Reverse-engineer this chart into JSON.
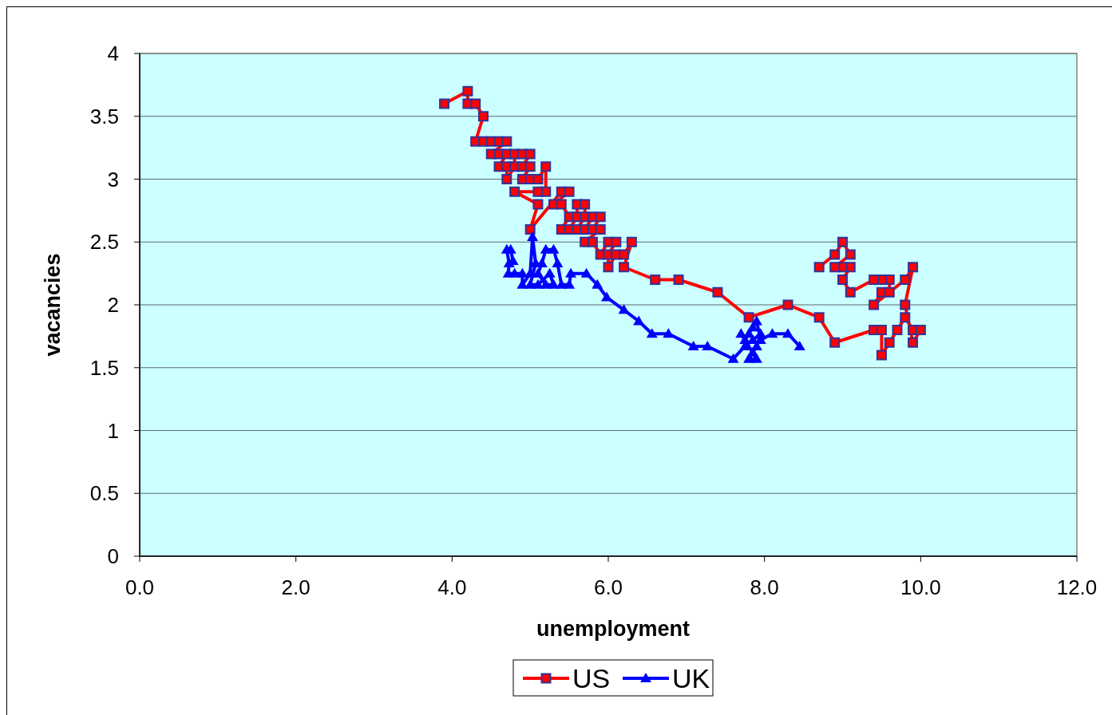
{
  "chart_data": {
    "type": "line",
    "xlabel": "unemployment",
    "ylabel": "vacancies",
    "xlim": [
      0,
      12
    ],
    "xticks": [
      {
        "value": 0,
        "label": "0.0"
      },
      {
        "value": 2,
        "label": "2.0"
      },
      {
        "value": 4,
        "label": "4.0"
      },
      {
        "value": 6,
        "label": "6.0"
      },
      {
        "value": 8,
        "label": "8.0"
      },
      {
        "value": 10,
        "label": "10.0"
      },
      {
        "value": 12,
        "label": "12.0"
      }
    ],
    "ylim": [
      0,
      4
    ],
    "yticks": [
      0,
      0.5,
      1,
      1.5,
      2,
      2.5,
      3,
      3.5,
      4
    ],
    "grid": "y",
    "legend": "bottom",
    "series": [
      {
        "name": "US",
        "color": "#ff0000",
        "marker": "square",
        "x": [
          3.9,
          4.2,
          4.2,
          4.3,
          4.4,
          4.3,
          4.4,
          4.5,
          4.6,
          4.7,
          4.5,
          4.6,
          4.7,
          4.6,
          4.7,
          4.7,
          4.8,
          4.8,
          4.9,
          5.0,
          4.9,
          5.0,
          4.9,
          5.0,
          5.1,
          5.2,
          5.2,
          5.1,
          4.8,
          5.1,
          5.0,
          5.4,
          5.5,
          5.3,
          5.4,
          5.5,
          5.4,
          5.5,
          5.6,
          5.6,
          5.7,
          5.7,
          5.6,
          5.7,
          5.8,
          5.9,
          5.8,
          5.9,
          5.7,
          5.8,
          5.9,
          6.0,
          6.1,
          6.0,
          6.0,
          6.1,
          6.2,
          6.3,
          6.2,
          6.6,
          6.9,
          7.4,
          7.8,
          8.3,
          8.7,
          8.9,
          9.4,
          9.5,
          9.5,
          9.6,
          9.7,
          9.8,
          9.9,
          10.0,
          9.9,
          9.8,
          9.9,
          9.8,
          9.4,
          9.5,
          9.6,
          9.6,
          9.5,
          9.4,
          9.1,
          9.0,
          9.1,
          9.0,
          8.9,
          9.1,
          9.0,
          8.9,
          8.7
        ],
        "values": [
          3.6,
          3.7,
          3.6,
          3.6,
          3.5,
          3.3,
          3.3,
          3.3,
          3.3,
          3.3,
          3.2,
          3.2,
          3.2,
          3.1,
          3.1,
          3.0,
          3.1,
          3.2,
          3.2,
          3.2,
          3.1,
          3.1,
          3.0,
          3.0,
          3.0,
          3.1,
          2.9,
          2.9,
          2.9,
          2.8,
          2.6,
          2.9,
          2.9,
          2.8,
          2.8,
          2.7,
          2.6,
          2.6,
          2.7,
          2.8,
          2.8,
          2.7,
          2.6,
          2.6,
          2.7,
          2.7,
          2.6,
          2.6,
          2.5,
          2.5,
          2.4,
          2.5,
          2.5,
          2.4,
          2.3,
          2.4,
          2.4,
          2.5,
          2.3,
          2.2,
          2.2,
          2.1,
          1.9,
          2.0,
          1.9,
          1.7,
          1.8,
          1.8,
          1.6,
          1.7,
          1.8,
          1.9,
          1.8,
          1.8,
          1.7,
          2.0,
          2.3,
          2.2,
          2.0,
          2.1,
          2.1,
          2.2,
          2.2,
          2.2,
          2.1,
          2.2,
          2.3,
          2.3,
          2.3,
          2.4,
          2.5,
          2.4,
          2.3
        ]
      },
      {
        "name": "UK",
        "color": "#0000ff",
        "marker": "triangle",
        "x": [
          8.45,
          8.3,
          8.1,
          7.95,
          7.9,
          7.85,
          7.8,
          7.75,
          7.7,
          7.85,
          7.9,
          7.8,
          7.9,
          7.95,
          7.85,
          7.75,
          7.6,
          7.27,
          7.09,
          6.77,
          6.56,
          6.39,
          6.2,
          5.98,
          5.86,
          5.72,
          5.52,
          5.5,
          5.4,
          5.35,
          5.3,
          5.2,
          5.15,
          5.1,
          5.2,
          5.3,
          5.25,
          5.1,
          5.0,
          5.07,
          5.03,
          5.0,
          4.9,
          4.9,
          4.8,
          4.72,
          4.73,
          4.7,
          4.75,
          4.78
        ],
        "values": [
          1.67,
          1.77,
          1.77,
          1.72,
          1.87,
          1.82,
          1.77,
          1.72,
          1.77,
          1.62,
          1.57,
          1.57,
          1.67,
          1.77,
          1.72,
          1.67,
          1.57,
          1.67,
          1.67,
          1.77,
          1.77,
          1.87,
          1.96,
          2.06,
          2.16,
          2.25,
          2.25,
          2.16,
          2.16,
          2.33,
          2.44,
          2.44,
          2.33,
          2.25,
          2.16,
          2.16,
          2.25,
          2.16,
          2.16,
          2.33,
          2.54,
          2.25,
          2.16,
          2.25,
          2.25,
          2.25,
          2.33,
          2.44,
          2.44,
          2.35
        ]
      }
    ]
  }
}
